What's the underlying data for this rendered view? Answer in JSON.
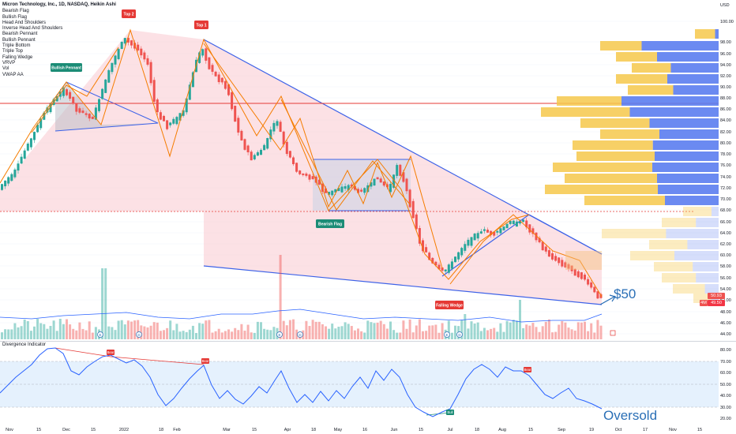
{
  "symbol_title": "Micron Technology, Inc., 1D, NASDAQ, Heikin Ashi",
  "currency": "USD",
  "indicator_list": [
    "Bearish Flag",
    "Bullish Flag",
    "Head And Shoulders",
    "Inverse Head And Shoulders",
    "Bearish Pennant",
    "Bullish Pennant",
    "Triple Bottom",
    "Triple Top",
    "Falling Wedge",
    "VRVP",
    "Vol",
    "VWAP AA"
  ],
  "pattern_labels": {
    "bullish_pennant": "Bullish Pennant",
    "top1": "Top 1",
    "top2": "Top 2",
    "bearish_flag": "Bearish Flag",
    "falling_wedge": "Falling Wedge"
  },
  "annotations": {
    "price_target": "$50",
    "oversold": "Oversold"
  },
  "price_axis_labels": [
    "100.00",
    "98.00",
    "96.00",
    "94.00",
    "92.00",
    "90.00",
    "88.00",
    "86.00",
    "84.00",
    "82.00",
    "80.00",
    "78.00",
    "76.00",
    "74.00",
    "72.00",
    "70.00",
    "68.00",
    "66.00",
    "64.00",
    "62.00",
    "60.00",
    "58.00",
    "56.00",
    "54.00",
    "52.00",
    "48.00",
    "46.00",
    "44.00"
  ],
  "price_tags": {
    "current": "50.93",
    "vwap": "49.50",
    "vol": "4M"
  },
  "x_axis_labels": [
    "Nov",
    "15",
    "Dec",
    "15",
    "2022",
    "18",
    "Feb",
    "Mar",
    "15",
    "Apr",
    "18",
    "May",
    "16",
    "Jun",
    "15",
    "Jul",
    "18",
    "Aug",
    "15",
    "Sep",
    "19",
    "Oct",
    "17",
    "Nov",
    "15"
  ],
  "oscillator": {
    "title": "Divergence Indicator",
    "axis_labels": [
      "80.00",
      "70.00",
      "60.00",
      "50.00",
      "40.00",
      "30.00",
      "20.00"
    ],
    "signal_labels": [
      "Bear",
      "Bear",
      "Bear",
      "Bull"
    ]
  },
  "event_badges": [
    "E",
    "D",
    "E",
    "D",
    "E",
    "D"
  ],
  "colors": {
    "bull_candle": "#26a69a",
    "bear_candle": "#ef5350",
    "pattern_orange": "#f57c00",
    "channel_blue": "#3d62e8",
    "channel_fill": "#f9c9cf",
    "vrvp_up": "#5b7df0",
    "vrvp_down": "#f6c84b",
    "oscillator_line": "#2962ff",
    "red_hline": "#e53935"
  }
}
